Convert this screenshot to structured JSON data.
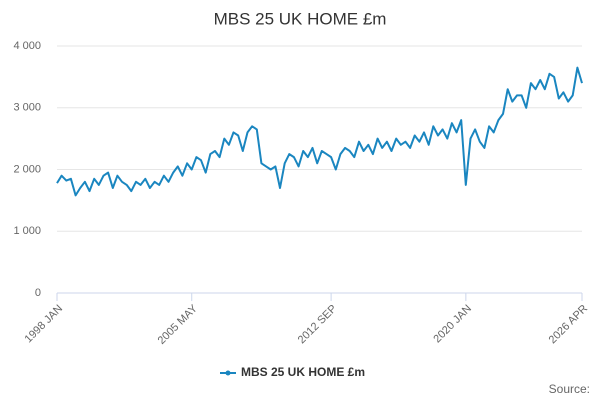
{
  "chart_data": {
    "type": "line",
    "title": "MBS 25 UK HOME £m",
    "source": "Source:",
    "categories": [
      "1998 JAN",
      null,
      null,
      null,
      null,
      null,
      null,
      null,
      null,
      null,
      null,
      null,
      null,
      null,
      null,
      null,
      null,
      null,
      null,
      null,
      null,
      null,
      null,
      null,
      null,
      null,
      null,
      null,
      null,
      "2005 MAY",
      null,
      null,
      null,
      null,
      null,
      null,
      null,
      null,
      null,
      null,
      null,
      null,
      null,
      null,
      null,
      null,
      null,
      null,
      null,
      null,
      null,
      null,
      null,
      null,
      null,
      null,
      null,
      null,
      null,
      "2012 SEP",
      null,
      null,
      null,
      null,
      null,
      null,
      null,
      null,
      null,
      null,
      null,
      null,
      null,
      null,
      null,
      null,
      null,
      null,
      null,
      null,
      null,
      null,
      null,
      null,
      null,
      null,
      null,
      null,
      "2020 JAN",
      null,
      null,
      null,
      null,
      null,
      null,
      null,
      null,
      null,
      null,
      null,
      null,
      null,
      null,
      null,
      null,
      null,
      null,
      null,
      null,
      null,
      null,
      null,
      null,
      "2026 APR"
    ],
    "series": [
      {
        "name": "MBS 25 UK HOME £m",
        "color": "#1a86c0",
        "values": [
          1780,
          1900,
          1820,
          1850,
          1580,
          1700,
          1800,
          1650,
          1850,
          1750,
          1900,
          1950,
          1700,
          1900,
          1800,
          1750,
          1650,
          1800,
          1750,
          1850,
          1700,
          1800,
          1750,
          1900,
          1800,
          1950,
          2050,
          1900,
          2100,
          2000,
          2200,
          2150,
          1950,
          2250,
          2300,
          2200,
          2500,
          2400,
          2600,
          2550,
          2300,
          2600,
          2700,
          2650,
          2100,
          2050,
          2000,
          2050,
          1700,
          2100,
          2250,
          2200,
          2050,
          2300,
          2200,
          2350,
          2100,
          2300,
          2250,
          2200,
          2000,
          2250,
          2350,
          2300,
          2200,
          2450,
          2300,
          2400,
          2250,
          2500,
          2350,
          2450,
          2300,
          2500,
          2400,
          2450,
          2350,
          2550,
          2450,
          2600,
          2400,
          2700,
          2550,
          2650,
          2500,
          2750,
          2600,
          2800,
          1750,
          2500,
          2650,
          2450,
          2350,
          2700,
          2600,
          2800,
          2900,
          3300,
          3100,
          3200,
          3200,
          3000,
          3400,
          3300,
          3450,
          3300,
          3550,
          3500,
          3150,
          3250,
          3100,
          3200,
          3650,
          3400
        ]
      }
    ],
    "ylim": [
      0,
      4000
    ],
    "yticks": [
      0,
      {
        "value": 1000,
        "label": "1 000"
      },
      {
        "value": 2000,
        "label": "2 000"
      },
      {
        "value": 3000,
        "label": "3 000"
      },
      {
        "value": 4000,
        "label": "4 000"
      }
    ],
    "grid": true
  }
}
